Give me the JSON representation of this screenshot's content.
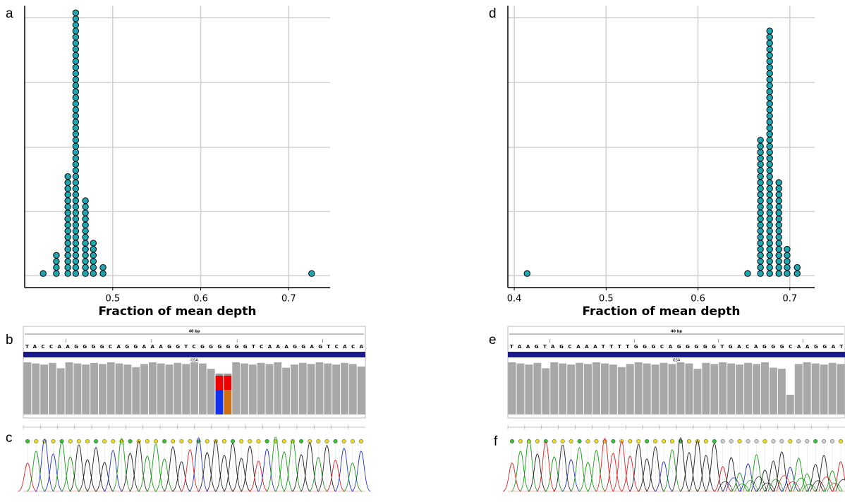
{
  "panel_labels": [
    "a",
    "b",
    "c",
    "d",
    "e",
    "f"
  ],
  "chart_data": [
    {
      "type": "dot",
      "x_label": "Fraction of mean depth",
      "color": "#1fa6b0",
      "x": [
        0.421,
        0.436,
        0.449,
        0.458,
        0.469,
        0.478,
        0.489,
        0.726
      ],
      "values": [
        1,
        4,
        17,
        44,
        13,
        6,
        2,
        1
      ],
      "xlim": [
        0.4,
        0.747
      ],
      "xticks": [
        0.5,
        0.6,
        0.7
      ],
      "grid": true
    },
    {
      "type": "dot",
      "x_label": "Fraction of mean depth",
      "color": "#1fa6b0",
      "x": [
        0.414,
        0.654,
        0.668,
        0.678,
        0.688,
        0.697,
        0.708
      ],
      "values": [
        1,
        1,
        23,
        41,
        16,
        5,
        2
      ],
      "xlim": [
        0.393,
        0.727
      ],
      "xticks": [
        0.4,
        0.5,
        0.6,
        0.7
      ],
      "grid": true
    }
  ],
  "igv": [
    {
      "scale": "40 bp",
      "track": "GSA",
      "sequence": "TACCAAGGGGCAGGAAAGGTCGGGGGGTCAAAGGAGTCACA"
    },
    {
      "scale": "40 bp",
      "track": "GSA",
      "sequence": "TAAGTAGCAAATTTTGGGCAGGGGGTGACAGGGCAAGGAT"
    }
  ]
}
